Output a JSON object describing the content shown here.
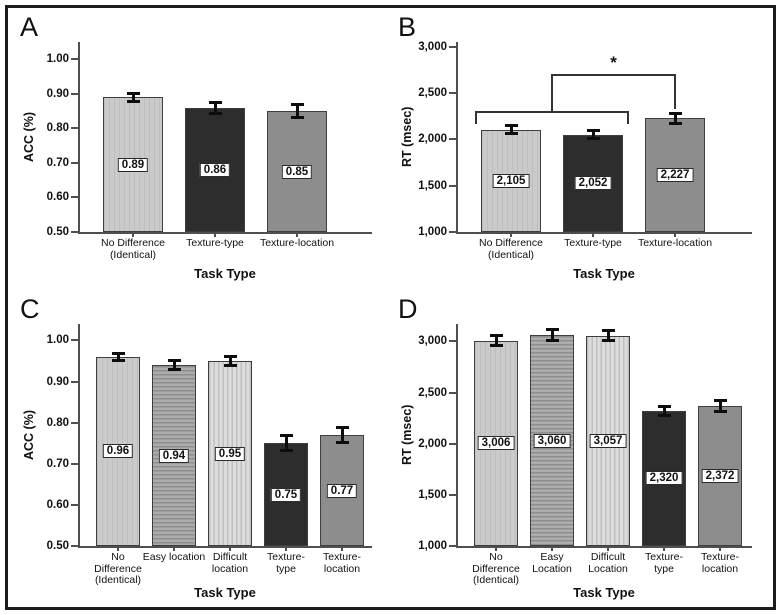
{
  "figure": {
    "background": "#ffffff",
    "frame_color": "#1c1c1c"
  },
  "colors": {
    "bar_light": "#cacaca",
    "bar_dark": "#2d2d2d",
    "bar_medium": "#8d8d8d",
    "axis": "#4f4f4f",
    "error_bar": "#0d0d0d"
  },
  "chart_data": [
    {
      "panel": "A",
      "type": "bar",
      "ylabel": "ACC (%)",
      "xlabel": "Task Type",
      "ylim": [
        0.5,
        1.05
      ],
      "grid": false,
      "legend": null,
      "yticks": [
        {
          "v": 0.5,
          "t": "0.50"
        },
        {
          "v": 0.6,
          "t": "0.60"
        },
        {
          "v": 0.7,
          "t": "0.70"
        },
        {
          "v": 0.8,
          "t": "0.80"
        },
        {
          "v": 0.9,
          "t": "0.90"
        },
        {
          "v": 1.0,
          "t": "1.00"
        }
      ],
      "bars": [
        {
          "category": "No Difference\n(Identical)",
          "value": 0.89,
          "label": "0.89",
          "error": 0.012,
          "style": "light"
        },
        {
          "category": "Texture-type",
          "value": 0.86,
          "label": "0.86",
          "error": 0.016,
          "style": "dark"
        },
        {
          "category": "Texture-location",
          "value": 0.85,
          "label": "0.85",
          "error": 0.018,
          "style": "medium"
        }
      ]
    },
    {
      "panel": "B",
      "type": "bar",
      "ylabel": "RT (msec)",
      "xlabel": "Task Type",
      "ylim": [
        1000,
        3050
      ],
      "grid": false,
      "legend": null,
      "yticks": [
        {
          "v": 1000,
          "t": "1,000"
        },
        {
          "v": 1500,
          "t": "1,500"
        },
        {
          "v": 2000,
          "t": "2,000"
        },
        {
          "v": 2500,
          "t": "2,500"
        },
        {
          "v": 3000,
          "t": "3,000"
        }
      ],
      "bars": [
        {
          "category": "No Difference\n(Identical)",
          "value": 2105,
          "label": "2,105",
          "error": 45,
          "style": "light"
        },
        {
          "category": "Texture-type",
          "value": 2052,
          "label": "2,052",
          "error": 42,
          "style": "dark"
        },
        {
          "category": "Texture-location",
          "value": 2227,
          "label": "2,227",
          "error": 55,
          "style": "medium"
        }
      ],
      "significance": {
        "label": "*",
        "group_span": [
          0,
          1
        ],
        "group_y": 2310,
        "top_y": 2700,
        "target_bar": 2,
        "target_y": 2330
      }
    },
    {
      "panel": "C",
      "type": "bar",
      "ylabel": "ACC (%)",
      "xlabel": "Task Type",
      "ylim": [
        0.5,
        1.04
      ],
      "grid": false,
      "legend": null,
      "yticks": [
        {
          "v": 0.5,
          "t": "0.50"
        },
        {
          "v": 0.6,
          "t": "0.60"
        },
        {
          "v": 0.7,
          "t": "0.70"
        },
        {
          "v": 0.8,
          "t": "0.80"
        },
        {
          "v": 0.9,
          "t": "0.90"
        },
        {
          "v": 1.0,
          "t": "1.00"
        }
      ],
      "bars": [
        {
          "category": "No\nDifference\n(Identical)",
          "value": 0.96,
          "label": "0.96",
          "error": 0.008,
          "style": "light"
        },
        {
          "category": "Easy location",
          "value": 0.94,
          "label": "0.94",
          "error": 0.011,
          "style": "hstripe"
        },
        {
          "category": "Difficult\nlocation",
          "value": 0.95,
          "label": "0.95",
          "error": 0.01,
          "style": "vstripe"
        },
        {
          "category": "Texture-\ntype",
          "value": 0.75,
          "label": "0.75",
          "error": 0.018,
          "style": "dark"
        },
        {
          "category": "Texture-\nlocation",
          "value": 0.77,
          "label": "0.77",
          "error": 0.018,
          "style": "medium"
        }
      ]
    },
    {
      "panel": "D",
      "type": "bar",
      "ylabel": "RT (msec)",
      "xlabel": "Task Type",
      "ylim": [
        1000,
        3170
      ],
      "grid": false,
      "legend": null,
      "yticks": [
        {
          "v": 1000,
          "t": "1,000"
        },
        {
          "v": 1500,
          "t": "1,500"
        },
        {
          "v": 2000,
          "t": "2,000"
        },
        {
          "v": 2500,
          "t": "2,500"
        },
        {
          "v": 3000,
          "t": "3,000"
        }
      ],
      "bars": [
        {
          "category": "No\nDifference\n(Identical)",
          "value": 3006,
          "label": "3,006",
          "error": 48,
          "style": "light"
        },
        {
          "category": "Easy\nLocation",
          "value": 3060,
          "label": "3,060",
          "error": 55,
          "style": "hstripe"
        },
        {
          "category": "Difficult\nLocation",
          "value": 3057,
          "label": "3,057",
          "error": 50,
          "style": "vstripe"
        },
        {
          "category": "Texture-\ntype",
          "value": 2320,
          "label": "2,320",
          "error": 45,
          "style": "dark"
        },
        {
          "category": "Texture-\nlocation",
          "value": 2372,
          "label": "2,372",
          "error": 55,
          "style": "medium"
        }
      ]
    }
  ]
}
